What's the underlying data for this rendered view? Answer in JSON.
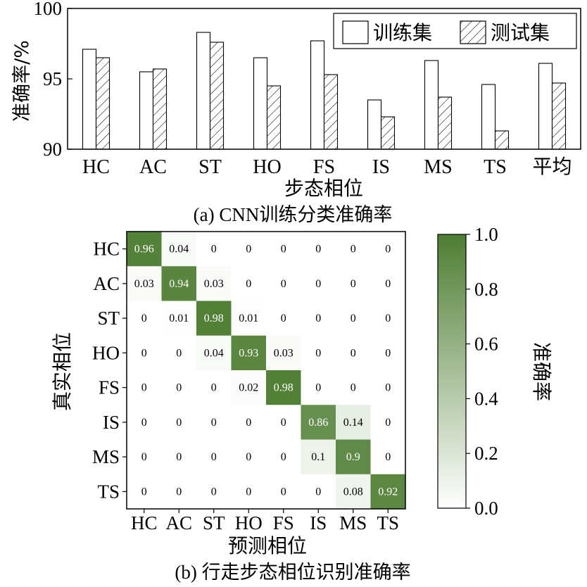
{
  "chart_data": [
    {
      "type": "bar",
      "caption": "(a) CNN训练分类准确率",
      "xlabel": "步态相位",
      "ylabel": "准确率/%",
      "ylim": [
        90,
        100
      ],
      "yticks": [
        "90",
        "95",
        "100"
      ],
      "categories": [
        "HC",
        "AC",
        "ST",
        "HO",
        "FS",
        "IS",
        "MS",
        "TS",
        "平均"
      ],
      "series": [
        {
          "name": "训练集",
          "pattern": "blank",
          "values": [
            97.1,
            95.5,
            98.3,
            96.5,
            97.7,
            93.5,
            96.3,
            94.6,
            96.1
          ]
        },
        {
          "name": "测试集",
          "pattern": "hatched",
          "values": [
            96.5,
            95.7,
            97.6,
            94.5,
            95.3,
            92.3,
            93.7,
            91.3,
            94.7
          ]
        }
      ],
      "legend": "top-right",
      "grid": false
    },
    {
      "type": "heatmap",
      "caption": "(b) 行走步态相位识别准确率",
      "xlabel": "预测相位",
      "ylabel": "真实相位",
      "x_categories": [
        "HC",
        "AC",
        "ST",
        "HO",
        "FS",
        "IS",
        "MS",
        "TS"
      ],
      "y_categories": [
        "HC",
        "AC",
        "ST",
        "HO",
        "FS",
        "IS",
        "MS",
        "TS"
      ],
      "matrix": [
        [
          "0.96",
          "0.04",
          "0",
          "0",
          "0",
          "0",
          "0",
          "0"
        ],
        [
          "0.03",
          "0.94",
          "0.03",
          "0",
          "0",
          "0",
          "0",
          "0"
        ],
        [
          "0",
          "0.01",
          "0.98",
          "0.01",
          "0",
          "0",
          "0",
          "0"
        ],
        [
          "0",
          "0",
          "0.04",
          "0.93",
          "0.03",
          "0",
          "0",
          "0"
        ],
        [
          "0",
          "0",
          "0",
          "0.02",
          "0.98",
          "0",
          "0",
          "0"
        ],
        [
          "0",
          "0",
          "0",
          "0",
          "0",
          "0.86",
          "0.14",
          "0"
        ],
        [
          "0",
          "0",
          "0",
          "0",
          "0",
          "0.1",
          "0.9",
          "0"
        ],
        [
          "0",
          "0",
          "0",
          "0",
          "0",
          "0",
          "0.08",
          "0.92"
        ]
      ],
      "colorbar": {
        "label": "准确率",
        "range": [
          0.0,
          1.0
        ],
        "ticks": [
          "0.0",
          "0.2",
          "0.4",
          "0.6",
          "0.8",
          "1.0"
        ],
        "color_low": "#ffffff",
        "color_high": "#4e7d32"
      }
    }
  ]
}
